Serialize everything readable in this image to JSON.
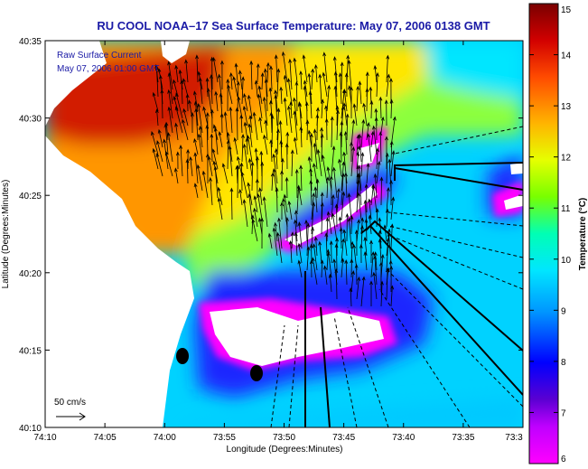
{
  "chart_data": {
    "type": "heatmap",
    "title": "RU COOL  NOAA–17  Sea Surface Temperature:  May 07, 2006 0138 GMT",
    "xlabel": "Longitude (Degrees:Minutes)",
    "ylabel": "Latitude (Degrees:Minutes)",
    "colorbar_label": "Temperature (°C)",
    "x_ticks": [
      "74:10",
      "74:05",
      "74:00",
      "73:55",
      "73:50",
      "73:45",
      "73:40",
      "73:35",
      "73:3"
    ],
    "y_ticks": [
      "40:35",
      "40:30",
      "40:25",
      "40:20",
      "40:15",
      "40:10"
    ],
    "colorbar_ticks": [
      "15",
      "14",
      "13",
      "12",
      "11",
      "10",
      "9",
      "8",
      "7",
      "6"
    ],
    "colorbar_range": [
      6,
      15
    ],
    "annotation": {
      "line1": "Raw Surface Current",
      "line2": "May 07, 2006 01:00 GMT"
    },
    "vector_scale_label": "50 cm/s",
    "colors": {
      "land": "#ffffff",
      "title": "#1a1aa6",
      "annotation": "#1a1aa6",
      "colormap": [
        "#ff00ff",
        "#7a00c8",
        "#0000ff",
        "#00c8ff",
        "#00ffc8",
        "#a0ff00",
        "#ffff00",
        "#ff9600",
        "#ff2800",
        "#800000"
      ]
    }
  }
}
